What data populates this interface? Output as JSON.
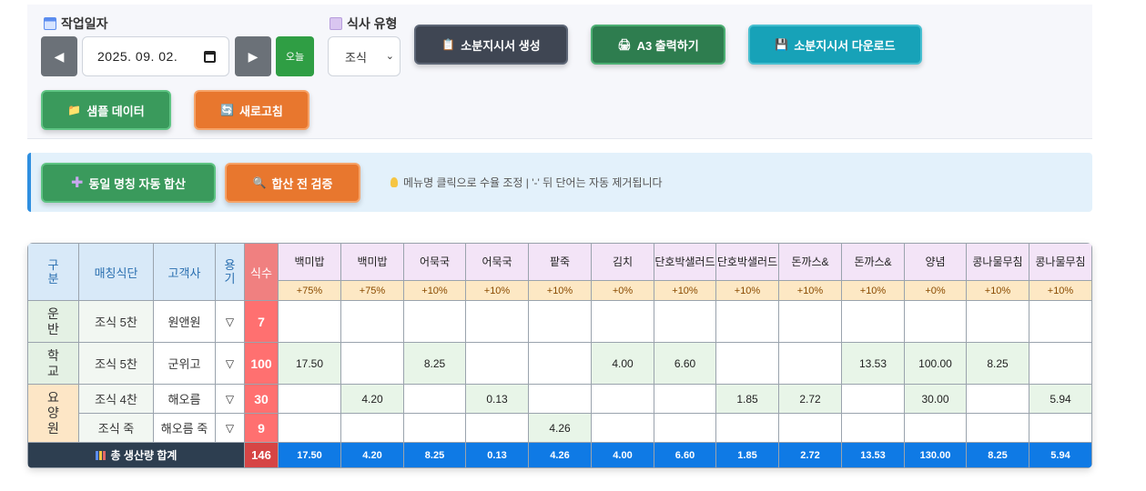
{
  "toolbar": {
    "date_label": "작업일자",
    "date_value": "2025. 09. 02.",
    "prev_symbol": "◀",
    "next_symbol": "▶",
    "today_label": "오늘",
    "meal_type_label": "식사 유형",
    "meal_type_value": "조식",
    "buttons": {
      "create_slip": "소분지시서 생성",
      "print_a3": "A3 출력하기",
      "download_slip": "소분지시서 다운로드",
      "sample_data": "샘플 데이터",
      "refresh": "새로고침"
    }
  },
  "actions": {
    "merge_same_names": "동일 명칭 자동 합산",
    "verify_before_merge": "합산 전 검증",
    "tip": "메뉴명 클릭으로 수율 조정 | '-' 뒤 단어는 자동 제거됩니다"
  },
  "table": {
    "headers": {
      "category": "구분",
      "matching_menu": "매칭식단",
      "customer": "고객사",
      "container": "용기",
      "count": "식수"
    },
    "menus": [
      "백미밥",
      "백미밥",
      "어묵국",
      "어묵국",
      "팥죽",
      "김치",
      "단호박샐러드",
      "단호박샐러드",
      "돈까스&",
      "돈까스&",
      "양념",
      "콩나물무침",
      "콩나물무침"
    ],
    "yields": [
      "+75%",
      "+75%",
      "+10%",
      "+10%",
      "+10%",
      "+0%",
      "+10%",
      "+10%",
      "+10%",
      "+10%",
      "+0%",
      "+10%",
      "+10%"
    ],
    "groups": [
      "운반",
      "학교",
      "요양원"
    ],
    "rows": [
      {
        "menu": "조식 5찬",
        "customer": "원앤원",
        "container": "▽",
        "count": "7",
        "values": [
          "",
          "",
          "",
          "",
          "",
          "",
          "",
          "",
          "",
          "",
          "",
          "",
          ""
        ]
      },
      {
        "menu": "조식 5찬",
        "customer": "군위고",
        "container": "▽",
        "count": "100",
        "values": [
          "17.50",
          "",
          "8.25",
          "",
          "",
          "4.00",
          "6.60",
          "",
          "",
          "13.53",
          "100.00",
          "8.25",
          ""
        ]
      },
      {
        "menu": "조식 4찬",
        "customer": "해오름",
        "container": "▽",
        "count": "30",
        "values": [
          "",
          "4.20",
          "",
          "0.13",
          "",
          "",
          "",
          "1.85",
          "2.72",
          "",
          "30.00",
          "",
          "5.94"
        ]
      },
      {
        "menu": "조식 죽",
        "customer": "해오름 죽",
        "container": "▽",
        "count": "9",
        "values": [
          "",
          "",
          "",
          "",
          "4.26",
          "",
          "",
          "",
          "",
          "",
          "",
          "",
          ""
        ]
      }
    ],
    "total": {
      "label": "총 생산량 합계",
      "count": "146",
      "values": [
        "17.50",
        "4.20",
        "8.25",
        "0.13",
        "4.26",
        "4.00",
        "6.60",
        "1.85",
        "2.72",
        "13.53",
        "130.00",
        "8.25",
        "5.94"
      ]
    }
  },
  "colors": {
    "accent_blue": "#0f7ae5",
    "count_red": "#ff7070",
    "total_dark": "#2d3e50"
  }
}
